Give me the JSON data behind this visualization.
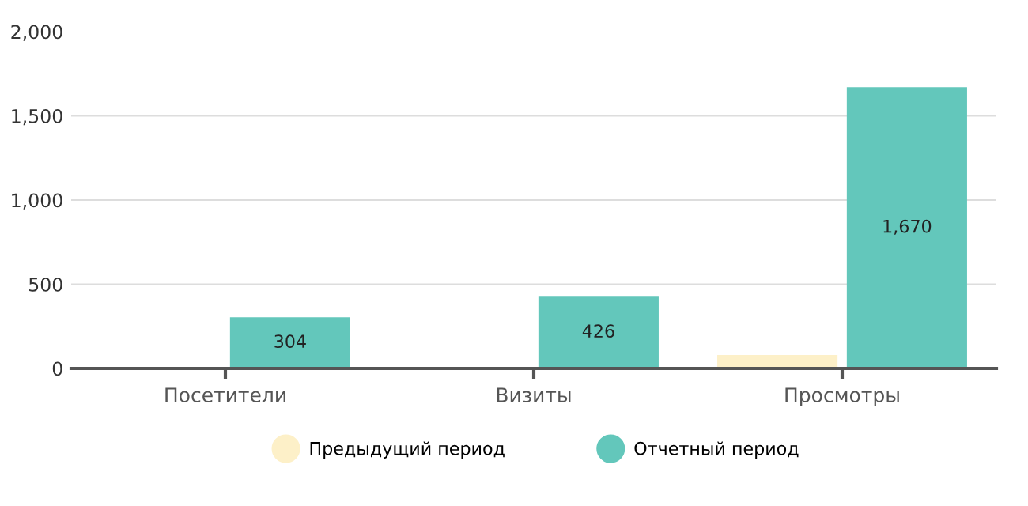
{
  "chart_data": {
    "type": "bar",
    "categories": [
      "Посетители",
      "Визиты",
      "Просмотры"
    ],
    "series": [
      {
        "name": "Предыдущий период",
        "color": "#fdf0c8",
        "values": [
          null,
          null,
          80
        ]
      },
      {
        "name": "Отчетный период",
        "color": "#63c7bb",
        "values": [
          304,
          426,
          1670
        ],
        "value_labels": [
          "304",
          "426",
          "1,670"
        ]
      }
    ],
    "ylim": [
      0,
      2000
    ],
    "yticks": [
      {
        "value": 0,
        "label": "0"
      },
      {
        "value": 500,
        "label": "500"
      },
      {
        "value": 1000,
        "label": "1,000"
      },
      {
        "value": 1500,
        "label": "1,500"
      },
      {
        "value": 2000,
        "label": "2,000"
      }
    ],
    "grid": "y",
    "legend": "bottom"
  }
}
